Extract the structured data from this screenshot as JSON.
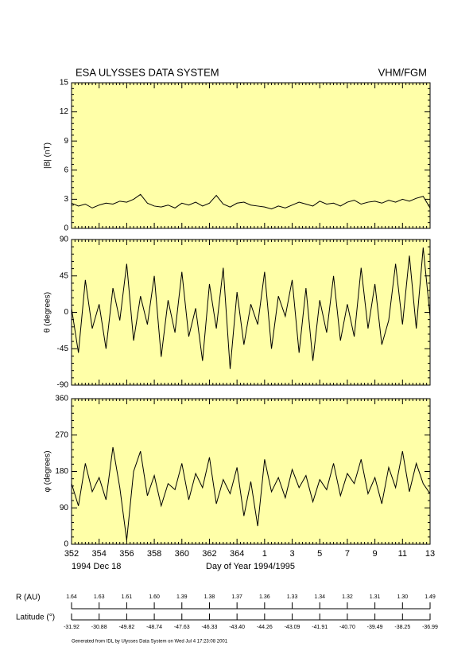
{
  "chart_data": [
    {
      "type": "line",
      "title": "ESA ULYSSES DATA SYSTEM",
      "instrument": "VHM/FGM",
      "ylabel": "|B| (nT)",
      "x": [
        352,
        352.5,
        353,
        353.5,
        354,
        354.5,
        355,
        355.5,
        356,
        356.5,
        357,
        357.5,
        358,
        358.5,
        359,
        359.5,
        360,
        360.5,
        361,
        361.5,
        362,
        362.5,
        363,
        363.5,
        364,
        364.5,
        365,
        365.5,
        366,
        366.5,
        367,
        367.5,
        368,
        368.5,
        369,
        369.5,
        370,
        370.5,
        371,
        371.5,
        372,
        372.5,
        373,
        373.5,
        374,
        374.5,
        375,
        375.5,
        376,
        376.5,
        377,
        377.5,
        378
      ],
      "values": [
        2.6,
        2.3,
        2.5,
        2.1,
        2.4,
        2.6,
        2.5,
        2.8,
        2.7,
        3.0,
        3.5,
        2.6,
        2.3,
        2.2,
        2.4,
        2.1,
        2.6,
        2.4,
        2.7,
        2.3,
        2.6,
        3.4,
        2.5,
        2.2,
        2.6,
        2.7,
        2.4,
        2.3,
        2.2,
        2.0,
        2.3,
        2.1,
        2.4,
        2.7,
        2.5,
        2.3,
        2.8,
        2.5,
        2.6,
        2.3,
        2.7,
        2.9,
        2.5,
        2.7,
        2.8,
        2.6,
        2.9,
        2.7,
        3.0,
        2.8,
        3.1,
        3.3,
        2.1
      ],
      "color": "#000000",
      "background": "#ffffa8",
      "xlim": [
        352,
        378
      ],
      "xticks": [
        352,
        354,
        356,
        358,
        360,
        362,
        364,
        {
          "value": 366,
          "label": "1"
        },
        {
          "value": 368,
          "label": "3"
        },
        {
          "value": 370,
          "label": "5"
        },
        {
          "value": 372,
          "label": "7"
        },
        {
          "value": 374,
          "label": "9"
        },
        {
          "value": 376,
          "label": "11"
        },
        {
          "value": 378,
          "label": "13"
        }
      ],
      "ylim": [
        0,
        15
      ],
      "yticks": [
        0,
        3,
        6,
        9,
        12,
        15
      ]
    },
    {
      "type": "line",
      "ylabel": "θ (degrees)",
      "x": [
        352,
        352.5,
        353,
        353.5,
        354,
        354.5,
        355,
        355.5,
        356,
        356.5,
        357,
        357.5,
        358,
        358.5,
        359,
        359.5,
        360,
        360.5,
        361,
        361.5,
        362,
        362.5,
        363,
        363.5,
        364,
        364.5,
        365,
        365.5,
        366,
        366.5,
        367,
        367.5,
        368,
        368.5,
        369,
        369.5,
        370,
        370.5,
        371,
        371.5,
        372,
        372.5,
        373,
        373.5,
        374,
        374.5,
        375,
        375.5,
        376,
        376.5,
        377,
        377.5,
        378
      ],
      "values": [
        5,
        -50,
        40,
        -20,
        10,
        -45,
        30,
        -10,
        60,
        -35,
        20,
        -15,
        45,
        -55,
        15,
        -25,
        50,
        -30,
        5,
        -60,
        35,
        -20,
        55,
        -70,
        25,
        -40,
        10,
        -15,
        50,
        -45,
        20,
        -5,
        40,
        -50,
        30,
        -60,
        15,
        -25,
        45,
        -35,
        10,
        -30,
        55,
        -20,
        35,
        -40,
        -10,
        60,
        -15,
        70,
        -20,
        80,
        -5
      ],
      "color": "#000000",
      "background": "#ffffa8",
      "xlim": [
        352,
        378
      ],
      "xticks": [
        352,
        354,
        356,
        358,
        360,
        362,
        364,
        {
          "value": 366,
          "label": "1"
        },
        {
          "value": 368,
          "label": "3"
        },
        {
          "value": 370,
          "label": "5"
        },
        {
          "value": 372,
          "label": "7"
        },
        {
          "value": 374,
          "label": "9"
        },
        {
          "value": 376,
          "label": "11"
        },
        {
          "value": 378,
          "label": "13"
        }
      ],
      "ylim": [
        -90,
        90
      ],
      "yticks": [
        -90,
        -45,
        0,
        45,
        90
      ]
    },
    {
      "type": "line",
      "ylabel": "φ (degrees)",
      "xlabel": "Day of Year 1994/1995",
      "start_date": "1994 Dec 18",
      "x": [
        352,
        352.5,
        353,
        353.5,
        354,
        354.5,
        355,
        355.5,
        356,
        356.5,
        357,
        357.5,
        358,
        358.5,
        359,
        359.5,
        360,
        360.5,
        361,
        361.5,
        362,
        362.5,
        363,
        363.5,
        364,
        364.5,
        365,
        365.5,
        366,
        366.5,
        367,
        367.5,
        368,
        368.5,
        369,
        369.5,
        370,
        370.5,
        371,
        371.5,
        372,
        372.5,
        373,
        373.5,
        374,
        374.5,
        375,
        375.5,
        376,
        376.5,
        377,
        377.5,
        378
      ],
      "values": [
        150,
        95,
        200,
        130,
        165,
        110,
        240,
        140,
        10,
        180,
        230,
        120,
        170,
        95,
        150,
        135,
        200,
        110,
        175,
        140,
        215,
        100,
        160,
        125,
        190,
        70,
        155,
        45,
        210,
        130,
        165,
        115,
        185,
        140,
        170,
        105,
        160,
        135,
        200,
        120,
        175,
        150,
        210,
        125,
        165,
        100,
        190,
        140,
        230,
        130,
        200,
        150,
        125
      ],
      "color": "#000000",
      "background": "#ffffa8",
      "xlim": [
        352,
        378
      ],
      "xticks": [
        352,
        354,
        356,
        358,
        360,
        362,
        364,
        {
          "value": 366,
          "label": "1"
        },
        {
          "value": 368,
          "label": "3"
        },
        {
          "value": 370,
          "label": "5"
        },
        {
          "value": 372,
          "label": "7"
        },
        {
          "value": 374,
          "label": "9"
        },
        {
          "value": 376,
          "label": "11"
        },
        {
          "value": 378,
          "label": "13"
        }
      ],
      "ylim": [
        0,
        360
      ],
      "yticks": [
        0,
        90,
        180,
        270,
        360
      ]
    }
  ],
  "ephemeris": {
    "r_label": "R (AU)",
    "r_values": [
      "1.64",
      "1.63",
      "1.61",
      "1.60",
      "1.39",
      "1.38",
      "1.37",
      "1.36",
      "1.33",
      "1.34",
      "1.32",
      "1.31",
      "1.30",
      "1.49"
    ],
    "lat_label": "Latitude (°)",
    "lat_values": [
      "-31.92",
      "-30.88",
      "-49.82",
      "-48.74",
      "-47.63",
      "-46.33",
      "-43.40",
      "-44.26",
      "-43.09",
      "-41.91",
      "-40.70",
      "-39.49",
      "-38.25",
      "-36.99"
    ]
  },
  "footer": "Generated from IDL by Ulysses Data System on Wed Jul 4 17:23:08 2001"
}
